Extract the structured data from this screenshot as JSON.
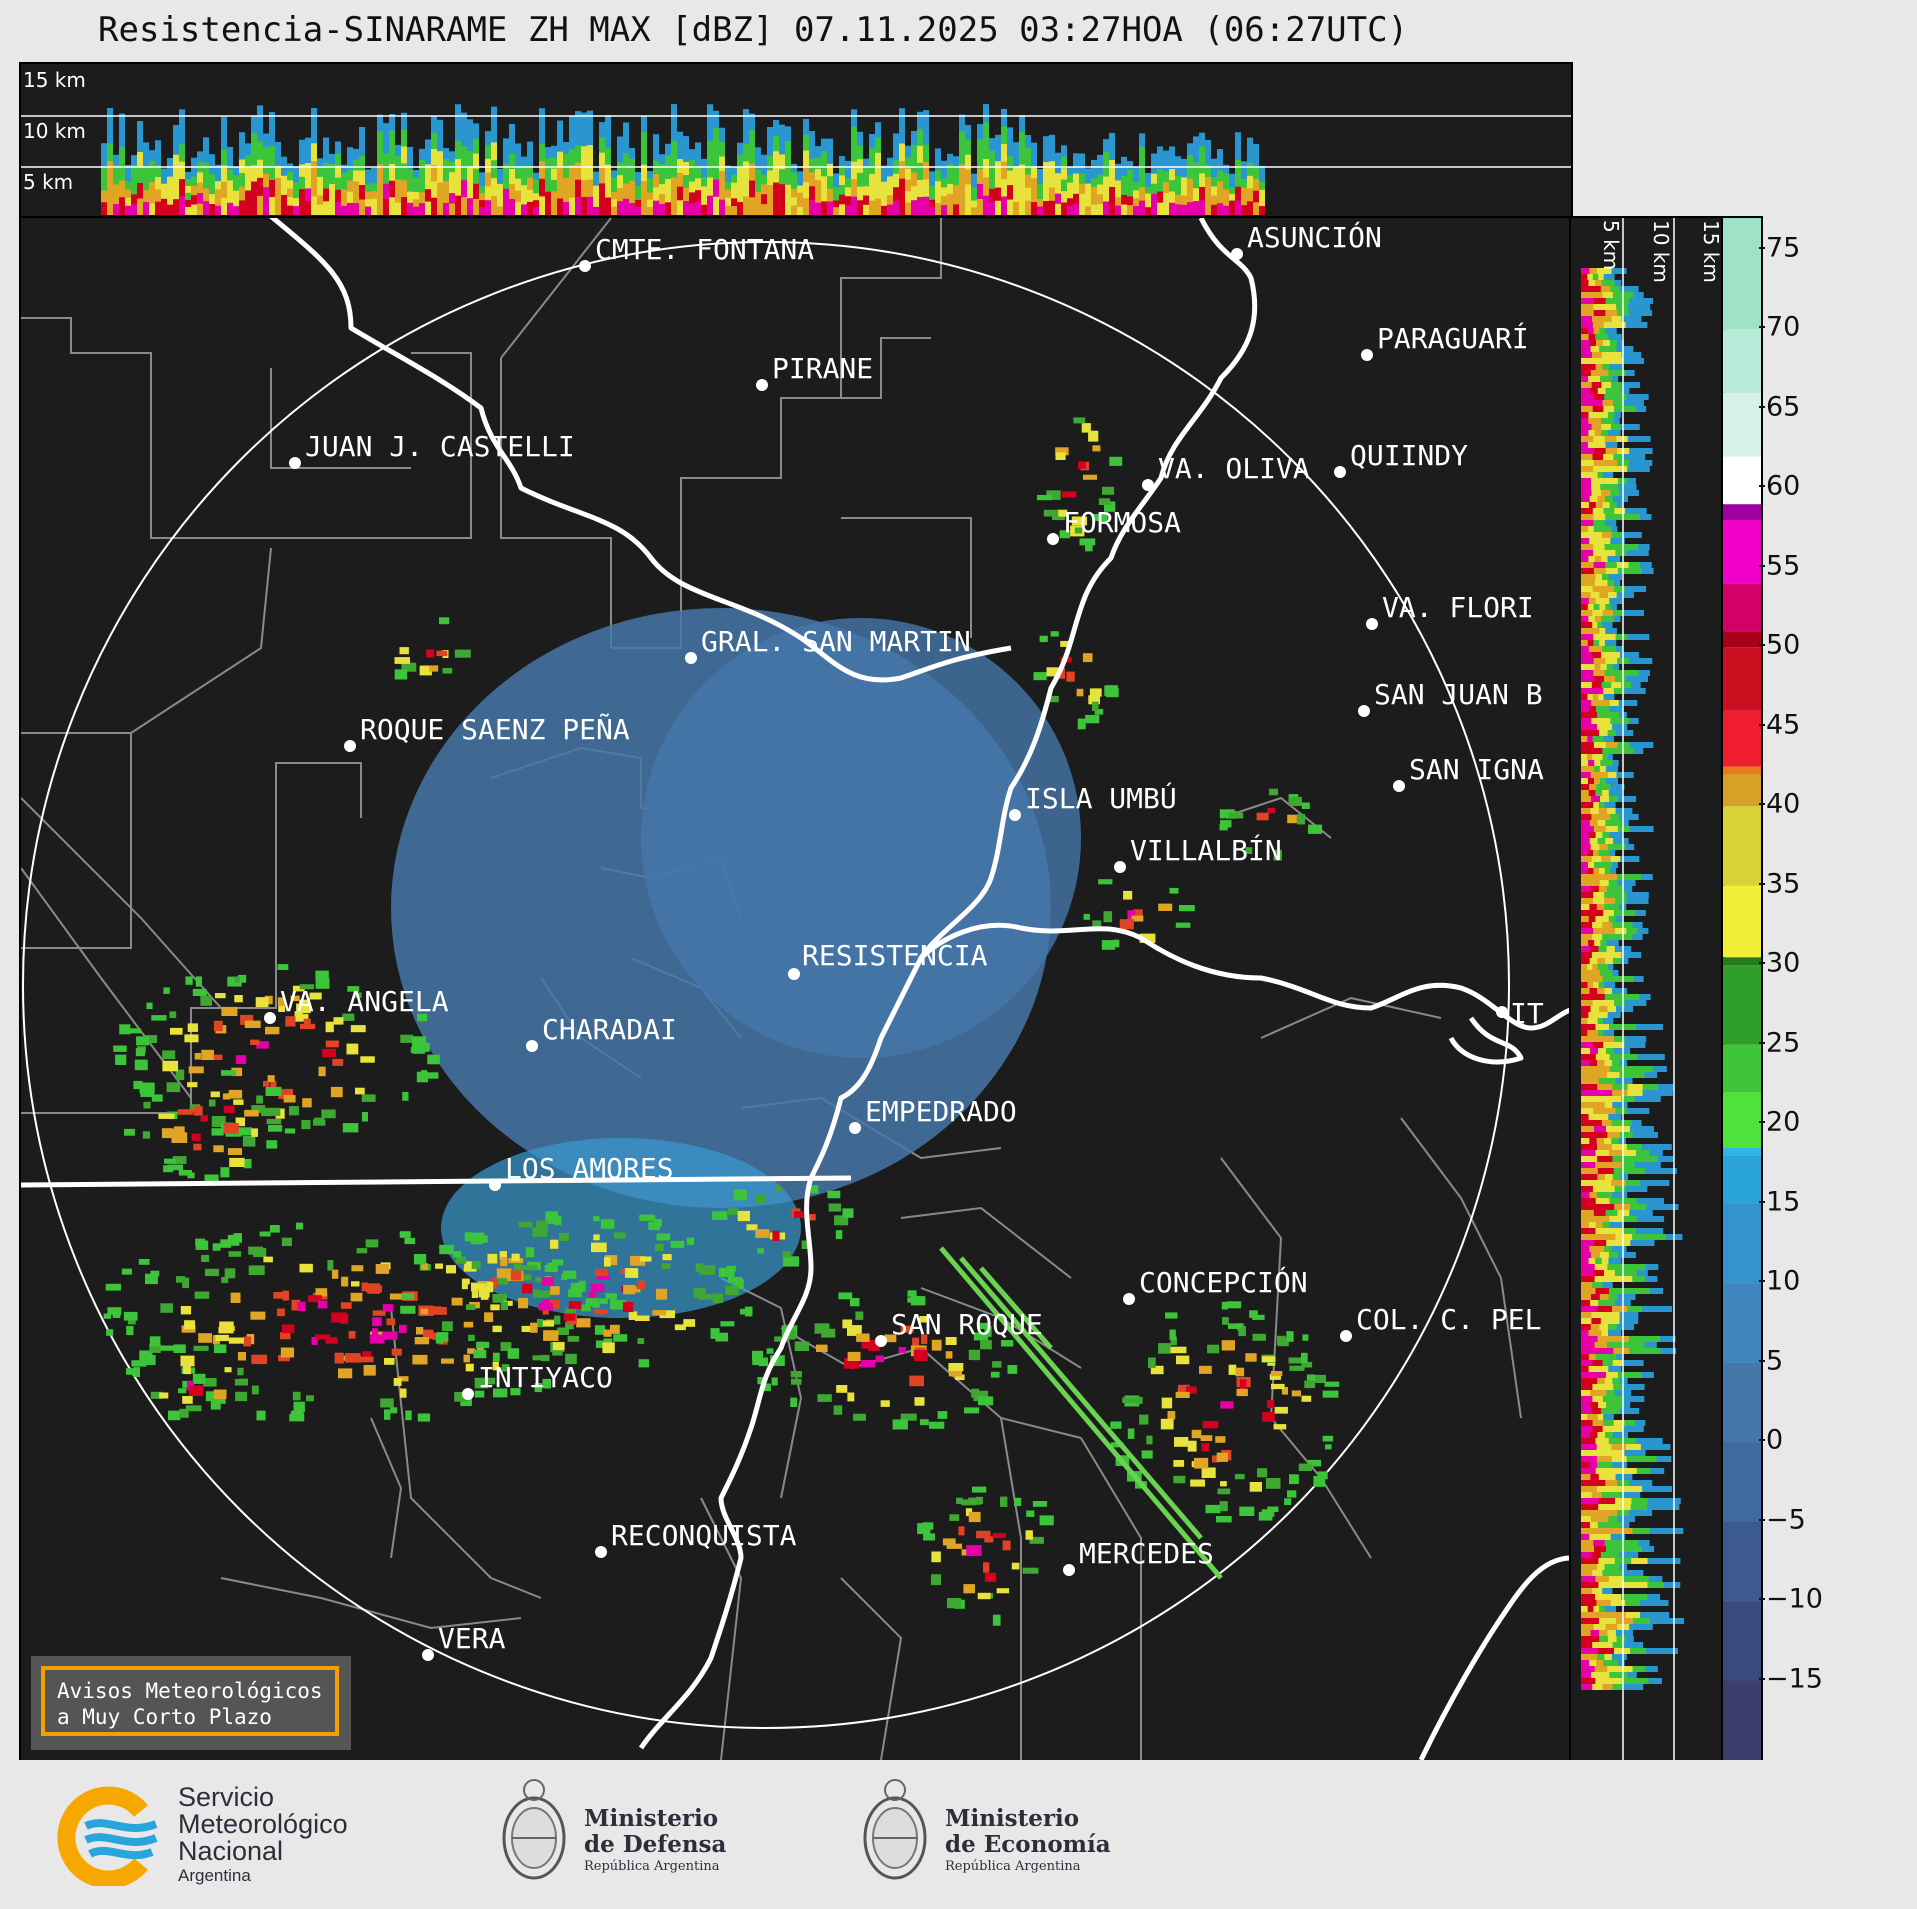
{
  "title": "Resistencia-SINARAME ZH MAX [dBZ] 07.11.2025 03:27HOA (06:27UTC)",
  "top_panel": {
    "altitude_labels": [
      "15 km",
      "10 km",
      "5 km"
    ]
  },
  "side_panel": {
    "altitude_labels": [
      "5 km",
      "10 km",
      "15 km"
    ]
  },
  "colorbar": {
    "unit": "dBZ",
    "ticks": [
      "75",
      "70",
      "65",
      "60",
      "55",
      "50",
      "45",
      "40",
      "35",
      "30",
      "25",
      "20",
      "15",
      "10",
      "5",
      "0",
      "−5",
      "−10",
      "−15"
    ],
    "range": [
      -20,
      77
    ]
  },
  "cities": [
    {
      "name": "CMTE. FONTANA"
    },
    {
      "name": "ASUNCIÓN"
    },
    {
      "name": "PARAGUARÍ"
    },
    {
      "name": "PIRANE"
    },
    {
      "name": "JUAN J. CASTELLI"
    },
    {
      "name": "VA. OLIVA"
    },
    {
      "name": "QUIINDY"
    },
    {
      "name": "FORMOSA"
    },
    {
      "name": "VA. FLORI"
    },
    {
      "name": "GRAL. SAN MARTIN"
    },
    {
      "name": "SAN JUAN B"
    },
    {
      "name": "ROQUE SAENZ PEÑA"
    },
    {
      "name": "SAN IGNA"
    },
    {
      "name": "ISLA UMBÚ"
    },
    {
      "name": "VILLALBÍN"
    },
    {
      "name": "RESISTENCIA"
    },
    {
      "name": "VA. ANGELA"
    },
    {
      "name": "CHARADAI"
    },
    {
      "name": "IT"
    },
    {
      "name": "EMPEDRADO"
    },
    {
      "name": "LOS AMORES"
    },
    {
      "name": "CONCEPCIÓN"
    },
    {
      "name": "SAN ROQUE"
    },
    {
      "name": "COL. C. PEL"
    },
    {
      "name": "INTIYACO"
    },
    {
      "name": "RECONQUISTA"
    },
    {
      "name": "MERCEDES"
    },
    {
      "name": "VERA"
    }
  ],
  "warning_box": {
    "line1": "Avisos Meteorológicos",
    "line2": "a Muy Corto Plazo"
  },
  "footer": {
    "smn": {
      "line1": "Servicio",
      "line2": "Meteorológico",
      "line3": "Nacional",
      "line4": "Argentina"
    },
    "defensa": {
      "line1": "Ministerio",
      "line2": "de Defensa",
      "line3": "República Argentina"
    },
    "economia": {
      "line1": "Ministerio",
      "line2": "de Economía",
      "line3": "República Argentina"
    }
  },
  "colors": {
    "background": "#1c1c1c",
    "smn_blue": "#2aa5dc",
    "smn_orange": "#f6a800",
    "warning_border": "#f5a000"
  }
}
